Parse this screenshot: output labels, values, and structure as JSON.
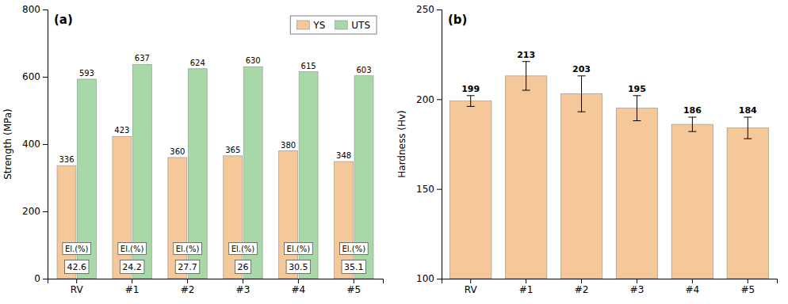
{
  "chart_data": [
    {
      "type": "bar",
      "title": "(a)",
      "categories": [
        "RV",
        "#1",
        "#2",
        "#3",
        "#4",
        "#5"
      ],
      "series": [
        {
          "name": "YS",
          "color": "#F5C89A",
          "values": [
            336,
            423,
            360,
            365,
            380,
            348
          ]
        },
        {
          "name": "UTS",
          "color": "#A8D8A8",
          "values": [
            593,
            637,
            624,
            630,
            615,
            603
          ]
        }
      ],
      "elongation": {
        "label": "El.(%)",
        "values": [
          42.6,
          24.2,
          27.7,
          26.0,
          30.5,
          35.1
        ]
      },
      "ylabel": "Strength (MPa)",
      "ylim": [
        0,
        800
      ],
      "yticks": [
        0,
        200,
        400,
        600,
        800
      ],
      "grid": false,
      "legend": "upper right",
      "data_labels": true
    },
    {
      "type": "bar",
      "title": "(b)",
      "categories": [
        "RV",
        "#1",
        "#2",
        "#3",
        "#4",
        "#5"
      ],
      "values": [
        199,
        213,
        203,
        195,
        186,
        184
      ],
      "errors": [
        3,
        8,
        10,
        7,
        4,
        6
      ],
      "color": "#F5C89A",
      "ylabel": "Hardness (Hv)",
      "ylim": [
        100,
        250
      ],
      "yticks": [
        100,
        150,
        200,
        250
      ],
      "grid": false,
      "data_labels": true
    }
  ]
}
